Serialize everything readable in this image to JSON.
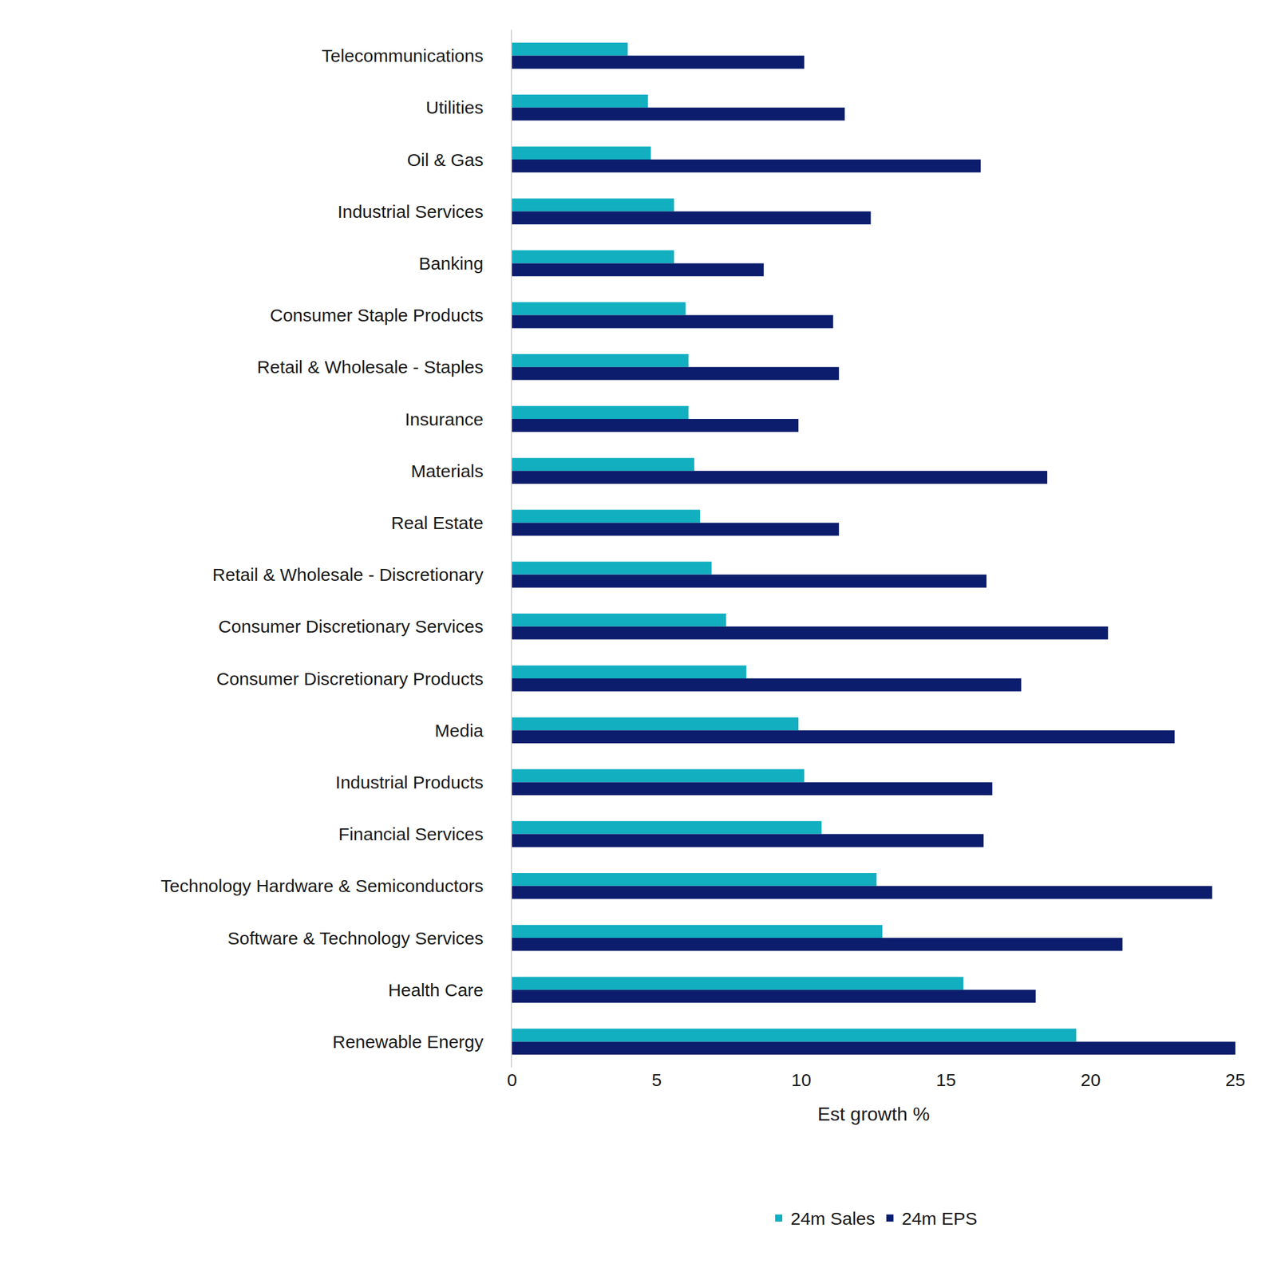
{
  "chart_data": {
    "type": "bar",
    "orientation": "horizontal",
    "x_label": "Est growth %",
    "categories": [
      "Telecommunications",
      "Utilities",
      "Oil & Gas",
      "Industrial Services",
      "Banking",
      "Consumer Staple Products",
      "Retail & Wholesale - Staples",
      "Insurance",
      "Materials",
      "Real Estate",
      "Retail & Wholesale - Discretionary",
      "Consumer Discretionary Services",
      "Consumer Discretionary Products",
      "Media",
      "Industrial Products",
      "Financial Services",
      "Technology Hardware & Semiconductors",
      "Software & Technology Services",
      "Health Care",
      "Renewable Energy"
    ],
    "series": [
      {
        "name": "24m Sales",
        "color": "#12afc0",
        "values": [
          4.0,
          4.7,
          4.8,
          5.6,
          5.6,
          6.0,
          6.1,
          6.1,
          6.3,
          6.5,
          6.9,
          7.4,
          8.1,
          9.9,
          10.1,
          10.7,
          12.6,
          12.8,
          15.6,
          19.5
        ]
      },
      {
        "name": "24m EPS",
        "color": "#0b1d6c",
        "values": [
          10.1,
          11.5,
          16.2,
          12.4,
          8.7,
          11.1,
          11.3,
          9.9,
          18.5,
          11.3,
          16.4,
          20.6,
          17.6,
          22.9,
          16.6,
          16.3,
          24.2,
          21.1,
          18.1,
          25.0
        ]
      }
    ],
    "xlim": [
      0,
      25
    ],
    "xticks": [
      0,
      5,
      10,
      15,
      20,
      25
    ],
    "grid": false,
    "legend": "bottom"
  }
}
